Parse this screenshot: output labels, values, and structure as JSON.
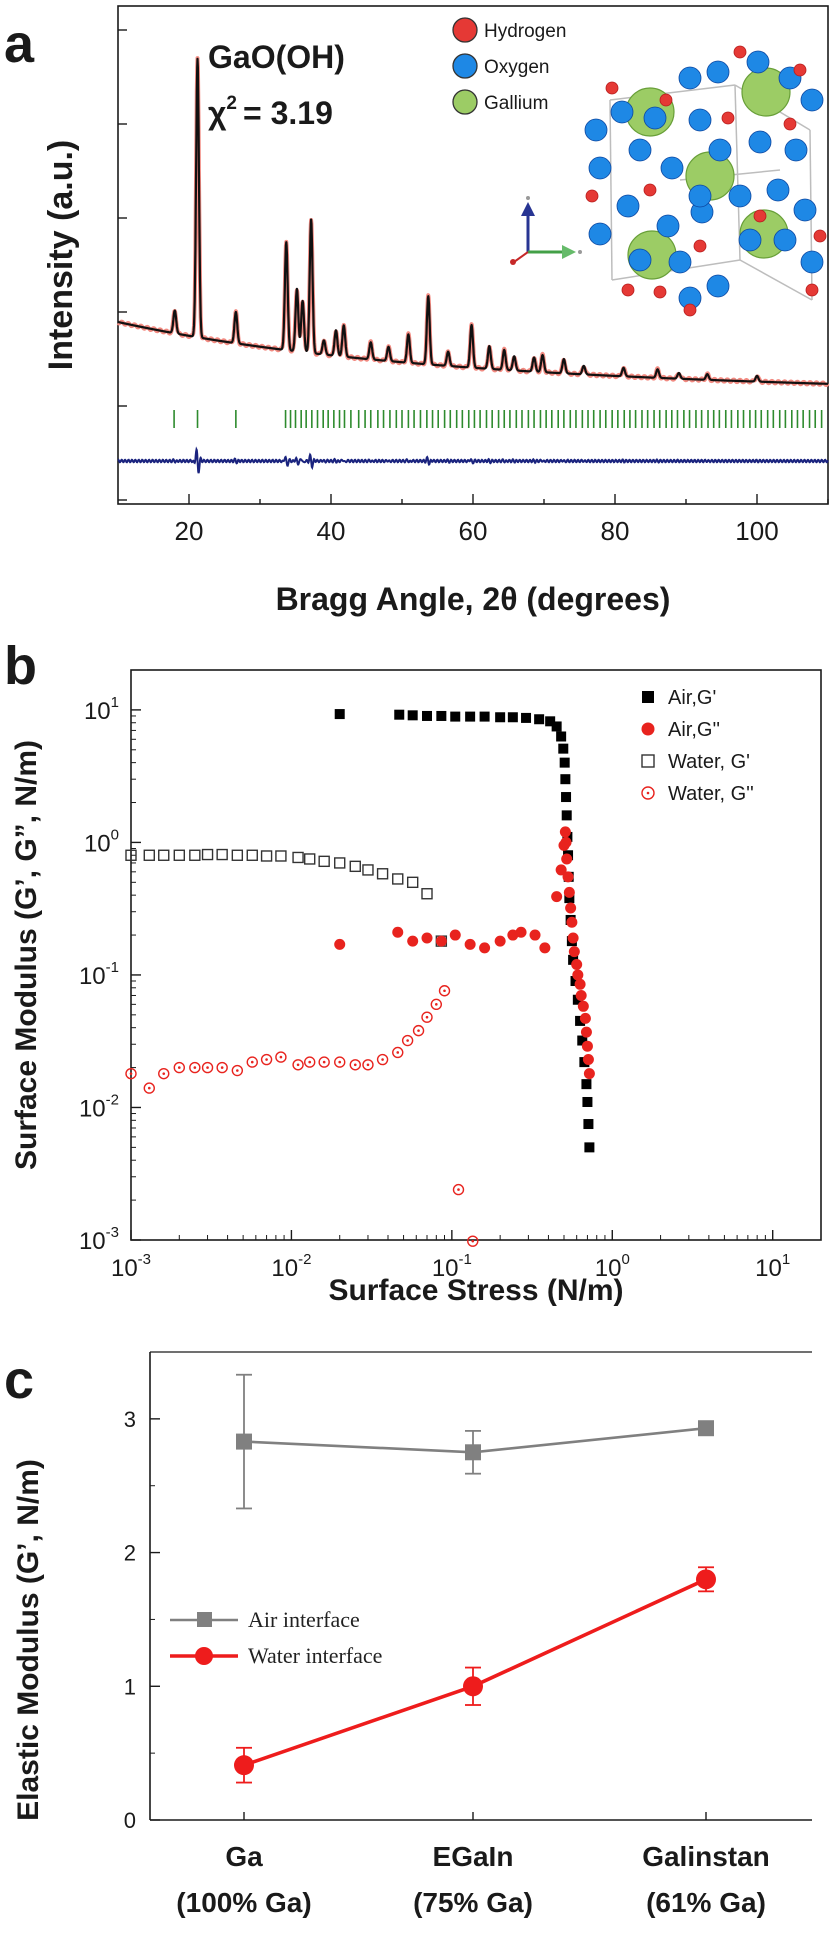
{
  "chart_data": [
    {
      "panel": "a",
      "type": "line",
      "xlabel": "Bragg Angle, 2θ (degrees)",
      "ylabel": "Intensity (a.u.)",
      "xlim": [
        10,
        110
      ],
      "xticks": [
        20,
        40,
        60,
        80,
        100
      ],
      "annotation_compound": "GaO(OH)",
      "annotation_chi_prefix": "χ",
      "annotation_chi_sup": "2",
      "annotation_chi_value": "= 3.19",
      "legend_placement": "top-right",
      "legend": [
        {
          "name": "Hydrogen",
          "color": "#e53935"
        },
        {
          "name": "Oxygen",
          "color": "#1e88e5"
        },
        {
          "name": "Gallium",
          "color": "#9ccc65"
        }
      ],
      "peaks": [
        {
          "x": 18.0,
          "height": 0.08
        },
        {
          "x": 21.2,
          "height": 0.98
        },
        {
          "x": 26.6,
          "height": 0.11
        },
        {
          "x": 33.7,
          "height": 0.38
        },
        {
          "x": 35.2,
          "height": 0.22
        },
        {
          "x": 36.0,
          "height": 0.18
        },
        {
          "x": 37.2,
          "height": 0.47
        },
        {
          "x": 39.0,
          "height": 0.05
        },
        {
          "x": 40.7,
          "height": 0.09
        },
        {
          "x": 41.8,
          "height": 0.11
        },
        {
          "x": 45.6,
          "height": 0.06
        },
        {
          "x": 48.1,
          "height": 0.05
        },
        {
          "x": 50.9,
          "height": 0.1
        },
        {
          "x": 53.7,
          "height": 0.24
        },
        {
          "x": 56.5,
          "height": 0.05
        },
        {
          "x": 59.8,
          "height": 0.15
        },
        {
          "x": 62.3,
          "height": 0.08
        },
        {
          "x": 64.4,
          "height": 0.07
        },
        {
          "x": 65.8,
          "height": 0.05
        },
        {
          "x": 68.6,
          "height": 0.05
        },
        {
          "x": 69.8,
          "height": 0.06
        },
        {
          "x": 72.8,
          "height": 0.05
        },
        {
          "x": 75.6,
          "height": 0.03
        },
        {
          "x": 81.2,
          "height": 0.03
        },
        {
          "x": 86.0,
          "height": 0.03
        },
        {
          "x": 89.0,
          "height": 0.02
        },
        {
          "x": 93.0,
          "height": 0.02
        },
        {
          "x": 100.0,
          "height": 0.02
        }
      ],
      "reflection_ticks": [
        17.9,
        21.2,
        26.6,
        33.6,
        34.3,
        35.0,
        35.8,
        36.5,
        37.3,
        38.1,
        38.9,
        39.6,
        40.4,
        41.2,
        41.9,
        42.8,
        43.9,
        44.8,
        45.6,
        46.6,
        47.4,
        48.3,
        49.2,
        50.0,
        50.9,
        51.7,
        52.6,
        53.5,
        54.3,
        55.1,
        56.0,
        56.8,
        57.7,
        58.5,
        59.4,
        60.2,
        61.0,
        61.9,
        62.7,
        63.6,
        64.4,
        65.2,
        66.1,
        66.9,
        67.8,
        68.6,
        69.5,
        70.3,
        71.1,
        72.0,
        72.8,
        73.7,
        74.5,
        75.4,
        76.2,
        77.0,
        77.9,
        78.7,
        79.6,
        80.4,
        81.3,
        82.1,
        82.9,
        83.8,
        84.6,
        85.5,
        86.3,
        87.2,
        88.0,
        88.8,
        89.7,
        90.5,
        91.4,
        92.2,
        93.1,
        93.9,
        94.7,
        95.6,
        96.4,
        97.3,
        98.1,
        99.0,
        99.8,
        100.6,
        101.5,
        102.3,
        103.2,
        104.0,
        104.9,
        105.7,
        106.5,
        107.4,
        108.2,
        109.1
      ]
    },
    {
      "panel": "b",
      "type": "scatter",
      "xlabel": "Surface Stress (N/m)",
      "ylabel": "Surface Modulus (G’, G”, N/m)",
      "xscale": "log",
      "yscale": "log",
      "xlim": [
        0.001,
        20
      ],
      "ylim": [
        0.001,
        20
      ],
      "xticks": [
        {
          "value": 0.001,
          "base": "10",
          "exp": "-3"
        },
        {
          "value": 0.01,
          "base": "10",
          "exp": "-2"
        },
        {
          "value": 0.1,
          "base": "10",
          "exp": "-1"
        },
        {
          "value": 1,
          "base": "10",
          "exp": "0"
        },
        {
          "value": 10,
          "base": "10",
          "exp": "1"
        }
      ],
      "yticks": [
        {
          "value": 0.001,
          "base": "10",
          "exp": "-3"
        },
        {
          "value": 0.01,
          "base": "10",
          "exp": "-2"
        },
        {
          "value": 0.1,
          "base": "10",
          "exp": "-1"
        },
        {
          "value": 1,
          "base": "10",
          "exp": "0"
        },
        {
          "value": 10,
          "base": "10",
          "exp": "1"
        }
      ],
      "legend_placement": "top-right",
      "series": [
        {
          "name": "Air,G'",
          "marker": "square-filled",
          "color": "#000000",
          "points": [
            [
              0.02,
              9.3
            ],
            [
              0.047,
              9.2
            ],
            [
              0.057,
              9.1
            ],
            [
              0.07,
              9.0
            ],
            [
              0.086,
              9.0
            ],
            [
              0.105,
              8.9
            ],
            [
              0.13,
              8.9
            ],
            [
              0.16,
              8.9
            ],
            [
              0.2,
              8.8
            ],
            [
              0.24,
              8.8
            ],
            [
              0.29,
              8.7
            ],
            [
              0.35,
              8.5
            ],
            [
              0.41,
              8.2
            ],
            [
              0.45,
              7.5
            ],
            [
              0.48,
              6.3
            ],
            [
              0.495,
              5.1
            ],
            [
              0.505,
              4.0
            ],
            [
              0.51,
              3.0
            ],
            [
              0.515,
              2.2
            ],
            [
              0.52,
              1.6
            ],
            [
              0.525,
              1.1
            ],
            [
              0.53,
              0.8
            ],
            [
              0.535,
              0.55
            ],
            [
              0.54,
              0.38
            ],
            [
              0.55,
              0.26
            ],
            [
              0.56,
              0.18
            ],
            [
              0.57,
              0.13
            ],
            [
              0.59,
              0.09
            ],
            [
              0.61,
              0.065
            ],
            [
              0.63,
              0.045
            ],
            [
              0.65,
              0.032
            ],
            [
              0.67,
              0.022
            ],
            [
              0.69,
              0.015
            ],
            [
              0.7,
              0.011
            ],
            [
              0.71,
              0.0075
            ],
            [
              0.72,
              0.005
            ]
          ]
        },
        {
          "name": "Air,G''",
          "marker": "circle-filled",
          "color": "#e8231e",
          "points": [
            [
              0.02,
              0.17
            ],
            [
              0.046,
              0.21
            ],
            [
              0.057,
              0.18
            ],
            [
              0.07,
              0.19
            ],
            [
              0.086,
              0.18
            ],
            [
              0.105,
              0.2
            ],
            [
              0.13,
              0.17
            ],
            [
              0.16,
              0.16
            ],
            [
              0.2,
              0.18
            ],
            [
              0.24,
              0.2
            ],
            [
              0.27,
              0.21
            ],
            [
              0.33,
              0.2
            ],
            [
              0.38,
              0.16
            ],
            [
              0.45,
              0.39
            ],
            [
              0.48,
              0.62
            ],
            [
              0.5,
              0.95
            ],
            [
              0.51,
              1.2
            ],
            [
              0.515,
              1.0
            ],
            [
              0.52,
              0.75
            ],
            [
              0.53,
              0.55
            ],
            [
              0.54,
              0.42
            ],
            [
              0.55,
              0.32
            ],
            [
              0.56,
              0.25
            ],
            [
              0.57,
              0.19
            ],
            [
              0.58,
              0.15
            ],
            [
              0.6,
              0.12
            ],
            [
              0.61,
              0.1
            ],
            [
              0.63,
              0.085
            ],
            [
              0.64,
              0.07
            ],
            [
              0.66,
              0.058
            ],
            [
              0.68,
              0.047
            ],
            [
              0.69,
              0.037
            ],
            [
              0.7,
              0.029
            ],
            [
              0.71,
              0.023
            ],
            [
              0.72,
              0.018
            ]
          ]
        },
        {
          "name": "Water, G'",
          "marker": "square-open",
          "color": "#333333",
          "points": [
            [
              0.001,
              0.8
            ],
            [
              0.0013,
              0.8
            ],
            [
              0.0016,
              0.8
            ],
            [
              0.002,
              0.8
            ],
            [
              0.0025,
              0.8
            ],
            [
              0.003,
              0.81
            ],
            [
              0.0037,
              0.81
            ],
            [
              0.0046,
              0.8
            ],
            [
              0.0057,
              0.8
            ],
            [
              0.007,
              0.79
            ],
            [
              0.0086,
              0.79
            ],
            [
              0.011,
              0.77
            ],
            [
              0.013,
              0.75
            ],
            [
              0.016,
              0.72
            ],
            [
              0.02,
              0.7
            ],
            [
              0.025,
              0.66
            ],
            [
              0.03,
              0.62
            ],
            [
              0.037,
              0.58
            ],
            [
              0.046,
              0.53
            ],
            [
              0.057,
              0.5
            ],
            [
              0.07,
              0.41
            ],
            [
              0.086,
              0.18
            ]
          ]
        },
        {
          "name": "Water, G''",
          "marker": "circle-open",
          "color": "#e8231e",
          "points": [
            [
              0.001,
              0.018
            ],
            [
              0.0013,
              0.014
            ],
            [
              0.0016,
              0.018
            ],
            [
              0.002,
              0.02
            ],
            [
              0.0025,
              0.02
            ],
            [
              0.003,
              0.02
            ],
            [
              0.0037,
              0.02
            ],
            [
              0.0046,
              0.019
            ],
            [
              0.0057,
              0.022
            ],
            [
              0.007,
              0.023
            ],
            [
              0.0086,
              0.024
            ],
            [
              0.011,
              0.021
            ],
            [
              0.013,
              0.022
            ],
            [
              0.016,
              0.022
            ],
            [
              0.02,
              0.022
            ],
            [
              0.025,
              0.021
            ],
            [
              0.03,
              0.021
            ],
            [
              0.037,
              0.023
            ],
            [
              0.046,
              0.026
            ],
            [
              0.053,
              0.032
            ],
            [
              0.062,
              0.038
            ],
            [
              0.07,
              0.048
            ],
            [
              0.08,
              0.06
            ],
            [
              0.09,
              0.076
            ],
            [
              0.11,
              0.0024
            ],
            [
              0.135,
              0.00098
            ]
          ]
        }
      ]
    },
    {
      "panel": "c",
      "type": "line",
      "ylabel": "Elastic Modulus (G’, N/m)",
      "ylim": [
        0,
        3.5
      ],
      "yticks": [
        "0",
        "1",
        "2",
        "3"
      ],
      "categories": [
        {
          "name": "Ga",
          "detail": "(100% Ga)"
        },
        {
          "name": "EGaIn",
          "detail": "(75% Ga)"
        },
        {
          "name": "Galinstan",
          "detail": "(61% Ga)"
        }
      ],
      "legend_placement": "center-left",
      "series": [
        {
          "name": "Air interface",
          "marker": "square",
          "color": "#808080",
          "values": [
            2.83,
            2.75,
            2.93
          ],
          "errors": [
            0.5,
            0.16,
            0.05
          ]
        },
        {
          "name": "Water interface",
          "marker": "circle",
          "color": "#ee1c1c",
          "values": [
            0.41,
            1.0,
            1.8
          ],
          "errors": [
            0.13,
            0.14,
            0.09
          ]
        }
      ]
    }
  ],
  "panel_letters": {
    "a": "a",
    "b": "b",
    "c": "c"
  }
}
